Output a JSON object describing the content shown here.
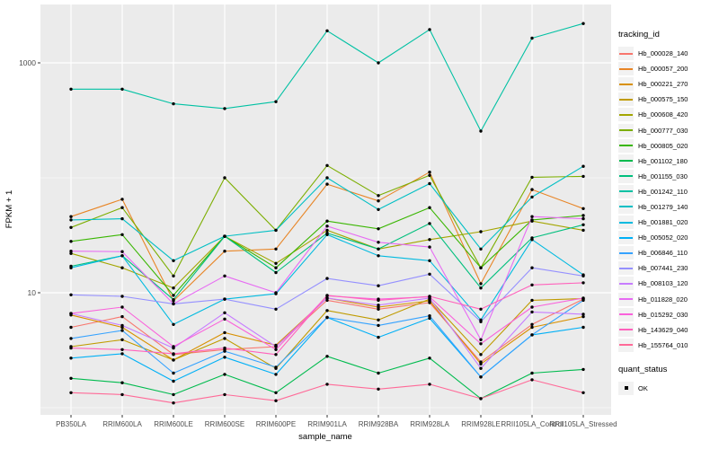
{
  "chart_data": {
    "type": "line",
    "title": "",
    "xlabel": "sample_name",
    "ylabel": "FPKM + 1",
    "y_scale": "log10",
    "y_breaks": [
      10,
      1000
    ],
    "y_break_labels": [
      "10",
      "1000"
    ],
    "y_minor_breaks": [
      1,
      100
    ],
    "grid": true,
    "legend_position": "right",
    "panel_bg": "#EBEBEB",
    "grid_color": "#FFFFFF",
    "point_color": "#000000",
    "axis_text_color": "#4D4D4D",
    "categories": [
      "PB350LA",
      "RRIM600LA",
      "RRIM600LE",
      "RRIM600SE",
      "RRIM600PE",
      "RRIM901LA",
      "RRIM928BA",
      "RRIM928LA",
      "RRIM928LE",
      "RRII105LA_Control",
      "RRII105LA_Stressed"
    ],
    "series": [
      {
        "name": "Hb_000028_140",
        "color": "#F8766D",
        "values": [
          5.0,
          6.2,
          2.9,
          3.2,
          3.4,
          8.6,
          7.2,
          8.2,
          2.5,
          5.3,
          8.8
        ]
      },
      {
        "name": "Hb_000057_200",
        "color": "#E88526",
        "values": [
          46,
          65,
          8.5,
          23,
          24,
          88,
          63,
          112,
          12,
          79,
          54
        ]
      },
      {
        "name": "Hb_000221_270",
        "color": "#D89000",
        "values": [
          6.4,
          5.0,
          2.6,
          4.5,
          3.5,
          9.0,
          7.5,
          8.5,
          2.4,
          5.0,
          6.2
        ]
      },
      {
        "name": "Hb_000575_150",
        "color": "#C09B00",
        "values": [
          3.4,
          3.9,
          2.6,
          4.0,
          2.2,
          7.0,
          5.8,
          8.8,
          2.9,
          8.6,
          8.9
        ]
      },
      {
        "name": "Hb_000608_420",
        "color": "#A3A500",
        "values": [
          22,
          16.5,
          11,
          31,
          18,
          35,
          24,
          29,
          34,
          42,
          35
        ]
      },
      {
        "name": "Hb_000777_030",
        "color": "#7CAE00",
        "values": [
          37,
          55,
          14,
          100,
          35,
          128,
          70,
          105,
          16.5,
          101,
          103
        ]
      },
      {
        "name": "Hb_000805_020",
        "color": "#39B600",
        "values": [
          28,
          32,
          9.5,
          31,
          16.5,
          42,
          36,
          55,
          16.5,
          43,
          47
        ]
      },
      {
        "name": "Hb_001102_180",
        "color": "#00BB4E",
        "values": [
          1.8,
          1.65,
          1.3,
          1.95,
          1.35,
          2.8,
          2.0,
          2.7,
          1.2,
          2.0,
          2.15
        ]
      },
      {
        "name": "Hb_001155_030",
        "color": "#00BF7D",
        "values": [
          17,
          21,
          8.7,
          31,
          15,
          33,
          24,
          40,
          11,
          30,
          39
        ]
      },
      {
        "name": "Hb_001242_110",
        "color": "#00C1A3",
        "values": [
          590,
          590,
          440,
          400,
          460,
          1900,
          1000,
          1950,
          255,
          1640,
          2200
        ]
      },
      {
        "name": "Hb_001279_140",
        "color": "#00BFC4",
        "values": [
          43,
          44,
          19,
          31,
          35,
          100,
          53,
          89,
          24,
          68,
          126
        ]
      },
      {
        "name": "Hb_001881_020",
        "color": "#00BAE0",
        "values": [
          16.5,
          21,
          5.3,
          8.8,
          9.8,
          32,
          21,
          19,
          5.8,
          29,
          14.3
        ]
      },
      {
        "name": "Hb_005052_020",
        "color": "#00B0F6",
        "values": [
          2.7,
          2.95,
          1.7,
          2.75,
          1.95,
          6.1,
          4.1,
          6.0,
          1.85,
          4.3,
          5.0
        ]
      },
      {
        "name": "Hb_006846_110",
        "color": "#35A2FF",
        "values": [
          4.0,
          4.7,
          2.0,
          3.1,
          2.25,
          6.1,
          5.2,
          6.3,
          1.85,
          4.3,
          8.6
        ]
      },
      {
        "name": "Hb_007441_230",
        "color": "#9590FF",
        "values": [
          9.6,
          9.3,
          8.0,
          8.8,
          7.2,
          13.3,
          11.5,
          14.5,
          5.6,
          16.5,
          14.0
        ]
      },
      {
        "name": "Hb_008103_120",
        "color": "#C77CFF",
        "values": [
          6.6,
          5.2,
          3.3,
          6.7,
          3.4,
          9.0,
          7.8,
          9.0,
          2.2,
          6.8,
          6.5
        ]
      },
      {
        "name": "Hb_011828_020",
        "color": "#E76BF3",
        "values": [
          23,
          22.8,
          8.0,
          14,
          10,
          38,
          27.5,
          25,
          3.9,
          46,
          44
        ]
      },
      {
        "name": "Hb_015292_030",
        "color": "#FA62DB",
        "values": [
          6.6,
          7.5,
          3.4,
          5.9,
          3.2,
          9.4,
          8.8,
          9.2,
          3.6,
          7.5,
          9.0
        ]
      },
      {
        "name": "Hb_143629_040",
        "color": "#FF62BC",
        "values": [
          3.3,
          3.2,
          2.95,
          3.3,
          2.9,
          9.5,
          8.6,
          9.3,
          7.2,
          11.7,
          12.2
        ]
      },
      {
        "name": "Hb_155764_010",
        "color": "#FF6A98",
        "values": [
          1.35,
          1.3,
          1.1,
          1.3,
          1.15,
          1.6,
          1.45,
          1.6,
          1.2,
          1.75,
          1.35
        ]
      }
    ],
    "legend": {
      "tracking_title": "tracking_id",
      "quant_title": "quant_status",
      "quant_value": "OK"
    }
  }
}
